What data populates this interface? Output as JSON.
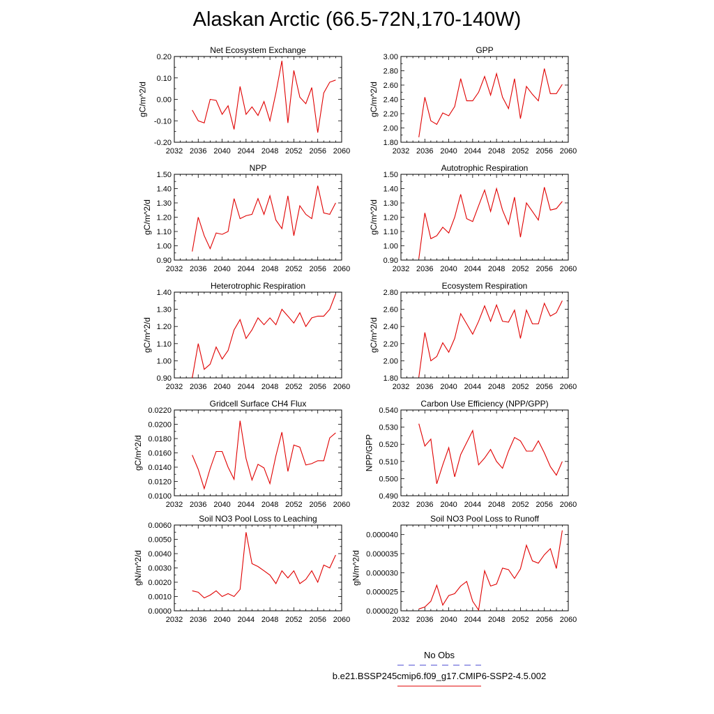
{
  "title": "Alaskan Arctic (66.5-72N,170-140W)",
  "legend": {
    "obs_label": "No Obs",
    "obs_color": "#4a4ad0",
    "model_label": "b.e21.BSSP245cmip6.f09_g17.CMIP6-SSP2-4.5.002",
    "model_color": "#e00000"
  },
  "chart_data": [
    {
      "type": "line",
      "title": "Net Ecosystem Exchange",
      "ylabel": "gC/m^2/d",
      "xlim": [
        2032,
        2060
      ],
      "x_ticks": [
        "2032",
        "2036",
        "2040",
        "2044",
        "2048",
        "2052",
        "2056",
        "2060"
      ],
      "ylim": [
        -0.2,
        0.2
      ],
      "y_ticks": [
        "-0.20",
        "-0.10",
        "0.00",
        "0.10",
        "0.20"
      ],
      "x": [
        2035,
        2036,
        2037,
        2038,
        2039,
        2040,
        2041,
        2042,
        2043,
        2044,
        2045,
        2046,
        2047,
        2048,
        2049,
        2050,
        2051,
        2052,
        2053,
        2054,
        2055,
        2056,
        2057,
        2058,
        2059
      ],
      "values": [
        -0.05,
        -0.1,
        -0.11,
        0.0,
        -0.005,
        -0.07,
        -0.03,
        -0.14,
        0.06,
        -0.07,
        -0.035,
        -0.075,
        -0.01,
        -0.1,
        0.03,
        0.18,
        -0.11,
        0.135,
        0.01,
        -0.02,
        0.055,
        -0.155,
        0.03,
        0.08,
        0.09
      ]
    },
    {
      "type": "line",
      "title": "GPP",
      "ylabel": "gC/m^2/d",
      "xlim": [
        2032,
        2060
      ],
      "x_ticks": [
        "2032",
        "2036",
        "2040",
        "2044",
        "2048",
        "2052",
        "2056",
        "2060"
      ],
      "ylim": [
        1.8,
        3.0
      ],
      "y_ticks": [
        "1.80",
        "2.00",
        "2.20",
        "2.40",
        "2.60",
        "2.80",
        "3.00"
      ],
      "x": [
        2035,
        2036,
        2037,
        2038,
        2039,
        2040,
        2041,
        2042,
        2043,
        2044,
        2045,
        2046,
        2047,
        2048,
        2049,
        2050,
        2051,
        2052,
        2053,
        2054,
        2055,
        2056,
        2057,
        2058,
        2059
      ],
      "values": [
        1.87,
        2.43,
        2.1,
        2.05,
        2.21,
        2.17,
        2.3,
        2.69,
        2.38,
        2.38,
        2.5,
        2.72,
        2.46,
        2.76,
        2.43,
        2.27,
        2.69,
        2.13,
        2.58,
        2.47,
        2.38,
        2.83,
        2.48,
        2.48,
        2.61
      ]
    },
    {
      "type": "line",
      "title": "NPP",
      "ylabel": "gC/m^2/d",
      "xlim": [
        2032,
        2060
      ],
      "x_ticks": [
        "2032",
        "2036",
        "2040",
        "2044",
        "2048",
        "2052",
        "2056",
        "2060"
      ],
      "ylim": [
        0.9,
        1.5
      ],
      "y_ticks": [
        "0.90",
        "1.00",
        "1.10",
        "1.20",
        "1.30",
        "1.40",
        "1.50"
      ],
      "x": [
        2035,
        2036,
        2037,
        2038,
        2039,
        2040,
        2041,
        2042,
        2043,
        2044,
        2045,
        2046,
        2047,
        2048,
        2049,
        2050,
        2051,
        2052,
        2053,
        2054,
        2055,
        2056,
        2057,
        2058,
        2059
      ],
      "values": [
        0.96,
        1.2,
        1.07,
        0.98,
        1.09,
        1.08,
        1.1,
        1.33,
        1.19,
        1.21,
        1.22,
        1.33,
        1.22,
        1.35,
        1.18,
        1.12,
        1.35,
        1.07,
        1.28,
        1.22,
        1.19,
        1.42,
        1.23,
        1.22,
        1.3
      ]
    },
    {
      "type": "line",
      "title": "Autotrophic Respiration",
      "ylabel": "gC/m^2/d",
      "xlim": [
        2032,
        2060
      ],
      "x_ticks": [
        "2032",
        "2036",
        "2040",
        "2044",
        "2048",
        "2052",
        "2056",
        "2060"
      ],
      "ylim": [
        0.9,
        1.5
      ],
      "y_ticks": [
        "0.90",
        "1.00",
        "1.10",
        "1.20",
        "1.30",
        "1.40",
        "1.50"
      ],
      "x": [
        2035,
        2036,
        2037,
        2038,
        2039,
        2040,
        2041,
        2042,
        2043,
        2044,
        2045,
        2046,
        2047,
        2048,
        2049,
        2050,
        2051,
        2052,
        2053,
        2054,
        2055,
        2056,
        2057,
        2058,
        2059
      ],
      "values": [
        0.91,
        1.23,
        1.05,
        1.07,
        1.13,
        1.09,
        1.2,
        1.36,
        1.19,
        1.17,
        1.28,
        1.39,
        1.24,
        1.4,
        1.25,
        1.15,
        1.34,
        1.06,
        1.3,
        1.24,
        1.18,
        1.41,
        1.25,
        1.26,
        1.31
      ]
    },
    {
      "type": "line",
      "title": "Heterotrophic Respiration",
      "ylabel": "gC/m^2/d",
      "xlim": [
        2032,
        2060
      ],
      "x_ticks": [
        "2032",
        "2036",
        "2040",
        "2044",
        "2048",
        "2052",
        "2056",
        "2060"
      ],
      "ylim": [
        0.9,
        1.4
      ],
      "y_ticks": [
        "0.90",
        "1.00",
        "1.10",
        "1.20",
        "1.30",
        "1.40"
      ],
      "x": [
        2035,
        2036,
        2037,
        2038,
        2039,
        2040,
        2041,
        2042,
        2043,
        2044,
        2045,
        2046,
        2047,
        2048,
        2049,
        2050,
        2051,
        2052,
        2053,
        2054,
        2055,
        2056,
        2057,
        2058,
        2059
      ],
      "values": [
        0.9,
        1.1,
        0.95,
        0.98,
        1.08,
        1.01,
        1.06,
        1.18,
        1.24,
        1.13,
        1.18,
        1.25,
        1.21,
        1.25,
        1.21,
        1.3,
        1.26,
        1.22,
        1.28,
        1.2,
        1.25,
        1.26,
        1.26,
        1.3,
        1.39
      ]
    },
    {
      "type": "line",
      "title": "Ecosystem Respiration",
      "ylabel": "gC/m^2/d",
      "xlim": [
        2032,
        2060
      ],
      "x_ticks": [
        "2032",
        "2036",
        "2040",
        "2044",
        "2048",
        "2052",
        "2056",
        "2060"
      ],
      "ylim": [
        1.8,
        2.8
      ],
      "y_ticks": [
        "1.80",
        "2.00",
        "2.20",
        "2.40",
        "2.60",
        "2.80"
      ],
      "x": [
        2035,
        2036,
        2037,
        2038,
        2039,
        2040,
        2041,
        2042,
        2043,
        2044,
        2045,
        2046,
        2047,
        2048,
        2049,
        2050,
        2051,
        2052,
        2053,
        2054,
        2055,
        2056,
        2057,
        2058,
        2059
      ],
      "values": [
        1.81,
        2.33,
        2.0,
        2.05,
        2.21,
        2.1,
        2.26,
        2.55,
        2.43,
        2.31,
        2.46,
        2.64,
        2.46,
        2.65,
        2.46,
        2.45,
        2.59,
        2.26,
        2.59,
        2.43,
        2.43,
        2.67,
        2.52,
        2.56,
        2.7
      ]
    },
    {
      "type": "line",
      "title": "Gridcell Surface CH4 Flux",
      "ylabel": "gC/m^2/d",
      "xlim": [
        2032,
        2060
      ],
      "x_ticks": [
        "2032",
        "2036",
        "2040",
        "2044",
        "2048",
        "2052",
        "2056",
        "2060"
      ],
      "ylim": [
        0.01,
        0.022
      ],
      "y_ticks": [
        "0.0100",
        "0.0120",
        "0.0140",
        "0.0160",
        "0.0180",
        "0.0200",
        "0.0220"
      ],
      "x": [
        2035,
        2036,
        2037,
        2038,
        2039,
        2040,
        2041,
        2042,
        2043,
        2044,
        2045,
        2046,
        2047,
        2048,
        2049,
        2050,
        2051,
        2052,
        2053,
        2054,
        2055,
        2056,
        2057,
        2058,
        2059
      ],
      "values": [
        0.0157,
        0.0137,
        0.011,
        0.0138,
        0.0162,
        0.0162,
        0.014,
        0.0123,
        0.0205,
        0.0152,
        0.0122,
        0.0144,
        0.0139,
        0.0117,
        0.0156,
        0.0189,
        0.0134,
        0.0171,
        0.0168,
        0.0143,
        0.0145,
        0.0149,
        0.0149,
        0.0181,
        0.0188
      ]
    },
    {
      "type": "line",
      "title": "Carbon Use Efficiency (NPP/GPP)",
      "ylabel": "NPP/GPP",
      "xlim": [
        2032,
        2060
      ],
      "x_ticks": [
        "2032",
        "2036",
        "2040",
        "2044",
        "2048",
        "2052",
        "2056",
        "2060"
      ],
      "ylim": [
        0.49,
        0.54
      ],
      "y_ticks": [
        "0.490",
        "0.500",
        "0.510",
        "0.520",
        "0.530",
        "0.540"
      ],
      "x": [
        2035,
        2036,
        2037,
        2038,
        2039,
        2040,
        2041,
        2042,
        2043,
        2044,
        2045,
        2046,
        2047,
        2048,
        2049,
        2050,
        2051,
        2052,
        2053,
        2054,
        2055,
        2056,
        2057,
        2058,
        2059
      ],
      "values": [
        0.532,
        0.519,
        0.523,
        0.497,
        0.508,
        0.518,
        0.501,
        0.514,
        0.521,
        0.528,
        0.508,
        0.512,
        0.517,
        0.51,
        0.506,
        0.516,
        0.524,
        0.522,
        0.516,
        0.516,
        0.522,
        0.515,
        0.507,
        0.502,
        0.51
      ]
    },
    {
      "type": "line",
      "title": "Soil NO3 Pool Loss to Leaching",
      "ylabel": "gN/m^2/d",
      "xlim": [
        2032,
        2060
      ],
      "x_ticks": [
        "2032",
        "2036",
        "2040",
        "2044",
        "2048",
        "2052",
        "2056",
        "2060"
      ],
      "ylim": [
        0.0,
        0.006
      ],
      "y_ticks": [
        "0.0000",
        "0.0010",
        "0.0020",
        "0.0030",
        "0.0040",
        "0.0050",
        "0.0060"
      ],
      "x": [
        2035,
        2036,
        2037,
        2038,
        2039,
        2040,
        2041,
        2042,
        2043,
        2044,
        2045,
        2046,
        2047,
        2048,
        2049,
        2050,
        2051,
        2052,
        2053,
        2054,
        2055,
        2056,
        2057,
        2058,
        2059
      ],
      "values": [
        0.0014,
        0.0013,
        0.0009,
        0.0011,
        0.0014,
        0.001,
        0.0012,
        0.001,
        0.0015,
        0.0055,
        0.0033,
        0.0031,
        0.0028,
        0.0025,
        0.0019,
        0.0028,
        0.0023,
        0.0028,
        0.0019,
        0.0022,
        0.0028,
        0.002,
        0.0032,
        0.003,
        0.0039
      ]
    },
    {
      "type": "line",
      "title": "Soil NO3 Pool Loss to Runoff",
      "ylabel": "gN/m^2/d",
      "xlim": [
        2032,
        2060
      ],
      "x_ticks": [
        "2032",
        "2036",
        "2040",
        "2044",
        "2048",
        "2052",
        "2056",
        "2060"
      ],
      "ylim": [
        2e-05,
        4.25e-05
      ],
      "y_ticks": [
        "0.000020",
        "0.000025",
        "0.000030",
        "0.000035",
        "0.000040"
      ],
      "x": [
        2035,
        2036,
        2037,
        2038,
        2039,
        2040,
        2041,
        2042,
        2043,
        2044,
        2045,
        2046,
        2047,
        2048,
        2049,
        2050,
        2051,
        2052,
        2053,
        2054,
        2055,
        2056,
        2057,
        2058,
        2059
      ],
      "values": [
        2.05e-05,
        2.1e-05,
        2.25e-05,
        2.67e-05,
        2.15e-05,
        2.4e-05,
        2.45e-05,
        2.65e-05,
        2.77e-05,
        2.25e-05,
        2.02e-05,
        3.05e-05,
        2.65e-05,
        2.7e-05,
        3.12e-05,
        3.08e-05,
        2.85e-05,
        3.1e-05,
        3.72e-05,
        3.31e-05,
        3.25e-05,
        3.47e-05,
        3.63e-05,
        3.11e-05,
        4.11e-05
      ]
    }
  ]
}
